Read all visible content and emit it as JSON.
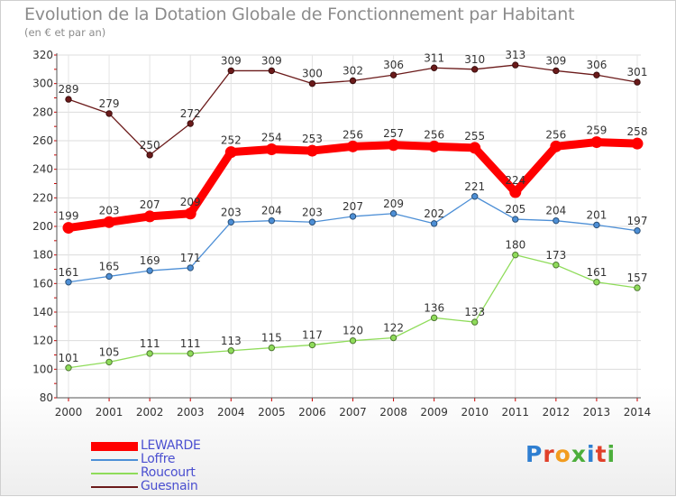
{
  "header": {
    "title": "Evolution de la Dotation Globale de Fonctionnement par Habitant",
    "subtitle": "(en € et par an)"
  },
  "logo": {
    "text": "Proxiti"
  },
  "chart_data": {
    "type": "line",
    "title": "Evolution de la Dotation Globale de Fonctionnement par Habitant",
    "subtitle": "(en € et par an)",
    "xlabel": "",
    "ylabel": "",
    "x": [
      "2000",
      "2001",
      "2002",
      "2003",
      "2004",
      "2005",
      "2006",
      "2007",
      "2008",
      "2009",
      "2010",
      "2011",
      "2012",
      "2013",
      "2014"
    ],
    "ylim": [
      80,
      320
    ],
    "yticks": [
      80,
      100,
      120,
      140,
      160,
      180,
      200,
      220,
      240,
      260,
      280,
      300,
      320
    ],
    "grid": true,
    "legend_position": "bottom-left",
    "series": [
      {
        "name": "LEWARDE",
        "color": "#ff0000",
        "values": [
          199,
          203,
          207,
          209,
          252,
          254,
          253,
          256,
          257,
          256,
          255,
          224,
          256,
          259,
          258
        ],
        "emphasis": true
      },
      {
        "name": "Loffre",
        "color": "#4d8fd6",
        "values": [
          161,
          165,
          169,
          171,
          203,
          204,
          203,
          207,
          209,
          202,
          221,
          205,
          204,
          201,
          197
        ]
      },
      {
        "name": "Roucourt",
        "color": "#8fdc5a",
        "values": [
          101,
          105,
          111,
          111,
          113,
          115,
          117,
          120,
          122,
          136,
          133,
          180,
          173,
          161,
          157
        ]
      },
      {
        "name": "Guesnain",
        "color": "#6b1a1a",
        "values": [
          289,
          279,
          250,
          272,
          309,
          309,
          300,
          302,
          306,
          311,
          310,
          313,
          309,
          306,
          301
        ]
      }
    ]
  }
}
